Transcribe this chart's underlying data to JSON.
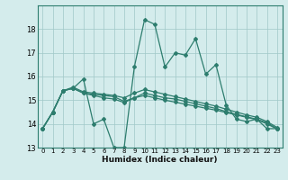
{
  "xlabel": "Humidex (Indice chaleur)",
  "bg_color": "#d4ecec",
  "line_color": "#2d7d6e",
  "grid_color": "#a0c8c8",
  "xlim": [
    -0.5,
    23.5
  ],
  "ylim": [
    13,
    19
  ],
  "yticks": [
    13,
    14,
    15,
    16,
    17,
    18
  ],
  "xticks": [
    0,
    1,
    2,
    3,
    4,
    5,
    6,
    7,
    8,
    9,
    10,
    11,
    12,
    13,
    14,
    15,
    16,
    17,
    18,
    19,
    20,
    21,
    22,
    23
  ],
  "series": [
    [
      13.8,
      14.5,
      15.4,
      15.5,
      15.9,
      14.0,
      14.2,
      13.0,
      13.0,
      16.4,
      18.4,
      18.2,
      16.4,
      17.0,
      16.9,
      17.6,
      16.1,
      16.5,
      14.8,
      14.2,
      14.1,
      14.2,
      13.8,
      13.8
    ],
    [
      13.8,
      14.5,
      15.4,
      15.5,
      15.3,
      15.25,
      15.2,
      15.15,
      14.95,
      15.1,
      15.3,
      15.2,
      15.1,
      15.05,
      14.95,
      14.85,
      14.75,
      14.65,
      14.52,
      14.4,
      14.3,
      14.2,
      14.05,
      13.8
    ],
    [
      13.8,
      14.5,
      15.4,
      15.5,
      15.3,
      15.2,
      15.1,
      15.05,
      14.9,
      15.1,
      15.2,
      15.1,
      15.0,
      14.92,
      14.83,
      14.75,
      14.66,
      14.58,
      14.48,
      14.38,
      14.28,
      14.18,
      14.0,
      13.78
    ],
    [
      13.8,
      14.5,
      15.4,
      15.55,
      15.35,
      15.3,
      15.25,
      15.2,
      15.1,
      15.3,
      15.45,
      15.35,
      15.25,
      15.15,
      15.05,
      14.95,
      14.85,
      14.75,
      14.62,
      14.5,
      14.38,
      14.28,
      14.1,
      13.85
    ]
  ]
}
